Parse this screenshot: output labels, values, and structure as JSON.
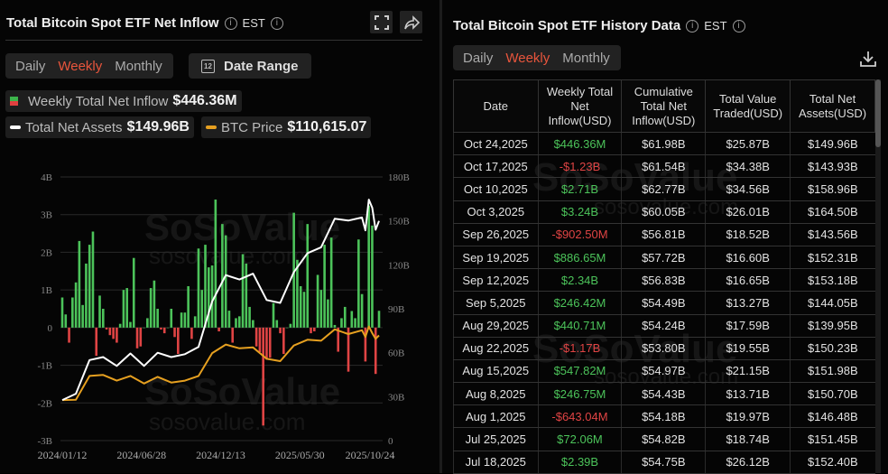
{
  "left": {
    "title": "Total Bitcoin Spot ETF Net Inflow",
    "timezone": "EST",
    "icons": {
      "info": "info-circle-icon",
      "fullscreen": "fullscreen-icon",
      "share": "share-icon",
      "calendar": "calendar-icon"
    },
    "calendar_day": "12",
    "tabs": [
      {
        "label": "Daily",
        "active": false
      },
      {
        "label": "Weekly",
        "active": true
      },
      {
        "label": "Monthly",
        "active": false
      }
    ],
    "date_range_label": "Date Range",
    "legend": {
      "inflow_label": "Weekly Total Net Inflow",
      "inflow_value": "$446.36M",
      "assets_label": "Total Net Assets",
      "assets_value": "$149.96B",
      "btc_label": "BTC Price",
      "btc_value": "$110,615.07"
    },
    "watermark": "SoSoValue",
    "watermark_url": "sosovalue.com"
  },
  "colors": {
    "accent": "#e8553c",
    "positive": "#4cc35a",
    "negative": "#e04444",
    "assets_line": "#ffffff",
    "btc_line": "#e6a020"
  },
  "chart_data": {
    "type": "bar+line",
    "left_axis": {
      "ticks": [
        "4B",
        "3B",
        "2B",
        "1B",
        "0",
        "-1B",
        "-2B",
        "-3B"
      ],
      "range": [
        -3,
        4
      ],
      "unit": "B USD"
    },
    "right_axis": {
      "ticks": [
        "180B",
        "150B",
        "120B",
        "90B",
        "60B",
        "30B",
        "0"
      ],
      "range": [
        0,
        180
      ],
      "unit": "B USD"
    },
    "x_ticks": [
      "2024/01/12",
      "2024/06/28",
      "2024/12/13",
      "2025/05/30",
      "2025/10/24"
    ],
    "x_range": [
      "2024-01-12",
      "2025-10-24"
    ],
    "grid": true,
    "weekly_net_inflow_B": [
      0.8,
      0.35,
      -0.4,
      0.8,
      1.2,
      2.3,
      0.6,
      1.7,
      2.2,
      2.55,
      -0.75,
      0.85,
      0.5,
      -0.05,
      -0.2,
      -0.3,
      -0.4,
      0.1,
      1.0,
      1.05,
      0.15,
      1.85,
      -0.55,
      -0.5,
      0.0,
      0.25,
      1.05,
      1.25,
      0.5,
      -0.05,
      -0.15,
      0.0,
      0.5,
      -0.25,
      -0.7,
      0.4,
      0.4,
      1.1,
      -0.3,
      0.3,
      2.1,
      1.0,
      2.2,
      1.6,
      1.65,
      3.4,
      -0.1,
      2.75,
      2.45,
      0.45,
      -0.4,
      0.25,
      0.3,
      1.95,
      1.7,
      0.55,
      0.2,
      -0.5,
      -0.65,
      -2.6,
      -0.85,
      -0.8,
      0.65,
      0.2,
      -0.15,
      -0.7,
      0.0,
      0.1,
      3.05,
      1.8,
      1.1,
      0.95,
      2.75,
      -0.15,
      -0.1,
      1.4,
      1.0,
      2.2,
      0.75,
      2.39,
      0.07,
      -0.64,
      0.25,
      0.55,
      -1.17,
      0.44,
      0.25,
      2.34,
      0.89,
      -0.9,
      3.24,
      2.71,
      -1.23,
      0.446
    ],
    "total_net_assets_B": [
      [
        "2024-01-12",
        27.7
      ],
      [
        "2024-02-09",
        32
      ],
      [
        "2024-03-08",
        55
      ],
      [
        "2024-04-05",
        57
      ],
      [
        "2024-05-03",
        51
      ],
      [
        "2024-05-31",
        59.5
      ],
      [
        "2024-06-28",
        51
      ],
      [
        "2024-07-26",
        60
      ],
      [
        "2024-08-23",
        57
      ],
      [
        "2024-09-20",
        59
      ],
      [
        "2024-10-18",
        64
      ],
      [
        "2024-11-15",
        95
      ],
      [
        "2024-12-13",
        113
      ],
      [
        "2025-01-10",
        110
      ],
      [
        "2025-02-07",
        114
      ],
      [
        "2025-03-07",
        96
      ],
      [
        "2025-04-04",
        94
      ],
      [
        "2025-05-02",
        115
      ],
      [
        "2025-05-30",
        128
      ],
      [
        "2025-06-27",
        132
      ],
      [
        "2025-07-25",
        151.45
      ],
      [
        "2025-08-22",
        150.23
      ],
      [
        "2025-09-19",
        152.31
      ],
      [
        "2025-09-26",
        143.56
      ],
      [
        "2025-10-03",
        164.5
      ],
      [
        "2025-10-10",
        158.96
      ],
      [
        "2025-10-17",
        143.93
      ],
      [
        "2025-10-24",
        149.96
      ]
    ],
    "btc_price_usd": [
      [
        "2024-01-12",
        42600
      ],
      [
        "2024-02-09",
        43000
      ],
      [
        "2024-03-08",
        68000
      ],
      [
        "2024-04-05",
        69000
      ],
      [
        "2024-05-03",
        63000
      ],
      [
        "2024-05-31",
        68000
      ],
      [
        "2024-06-28",
        60000
      ],
      [
        "2024-07-26",
        67000
      ],
      [
        "2024-08-23",
        61000
      ],
      [
        "2024-09-20",
        63000
      ],
      [
        "2024-10-18",
        68000
      ],
      [
        "2024-11-15",
        92000
      ],
      [
        "2024-12-13",
        101000
      ],
      [
        "2025-01-10",
        97000
      ],
      [
        "2025-02-07",
        98000
      ],
      [
        "2025-03-07",
        86000
      ],
      [
        "2025-04-04",
        83500
      ],
      [
        "2025-05-02",
        100000
      ],
      [
        "2025-05-30",
        106000
      ],
      [
        "2025-06-27",
        105000
      ],
      [
        "2025-07-25",
        117000
      ],
      [
        "2025-08-22",
        112000
      ],
      [
        "2025-09-19",
        116000
      ],
      [
        "2025-09-26",
        109000
      ],
      [
        "2025-10-03",
        120000
      ],
      [
        "2025-10-10",
        113000
      ],
      [
        "2025-10-17",
        107000
      ],
      [
        "2025-10-24",
        110615.07
      ]
    ]
  },
  "right": {
    "title": "Total Bitcoin Spot ETF History Data",
    "timezone": "EST",
    "tabs": [
      {
        "label": "Daily",
        "active": false
      },
      {
        "label": "Weekly",
        "active": true
      },
      {
        "label": "Monthly",
        "active": false
      }
    ],
    "download_icon": "download-icon",
    "columns": [
      "Date",
      "Weekly Total Net Inflow(USD)",
      "Cumulative Total Net Inflow(USD)",
      "Total Value Traded(USD)",
      "Total Net Assets(USD)"
    ],
    "rows": [
      [
        "Oct 24,2025",
        "$446.36M",
        "$61.98B",
        "$25.87B",
        "$149.96B"
      ],
      [
        "Oct 17,2025",
        "-$1.23B",
        "$61.54B",
        "$34.38B",
        "$143.93B"
      ],
      [
        "Oct 10,2025",
        "$2.71B",
        "$62.77B",
        "$34.56B",
        "$158.96B"
      ],
      [
        "Oct 3,2025",
        "$3.24B",
        "$60.05B",
        "$26.01B",
        "$164.50B"
      ],
      [
        "Sep 26,2025",
        "-$902.50M",
        "$56.81B",
        "$18.52B",
        "$143.56B"
      ],
      [
        "Sep 19,2025",
        "$886.65M",
        "$57.72B",
        "$16.60B",
        "$152.31B"
      ],
      [
        "Sep 12,2025",
        "$2.34B",
        "$56.83B",
        "$16.65B",
        "$153.18B"
      ],
      [
        "Sep 5,2025",
        "$246.42M",
        "$54.49B",
        "$13.27B",
        "$144.05B"
      ],
      [
        "Aug 29,2025",
        "$440.71M",
        "$54.24B",
        "$17.59B",
        "$139.95B"
      ],
      [
        "Aug 22,2025",
        "-$1.17B",
        "$53.80B",
        "$19.55B",
        "$150.23B"
      ],
      [
        "Aug 15,2025",
        "$547.82M",
        "$54.97B",
        "$21.15B",
        "$151.98B"
      ],
      [
        "Aug 8,2025",
        "$246.75M",
        "$54.43B",
        "$13.71B",
        "$150.70B"
      ],
      [
        "Aug 1,2025",
        "-$643.04M",
        "$54.18B",
        "$19.97B",
        "$146.48B"
      ],
      [
        "Jul 25,2025",
        "$72.06M",
        "$54.82B",
        "$18.74B",
        "$151.45B"
      ],
      [
        "Jul 18,2025",
        "$2.39B",
        "$54.75B",
        "$26.12B",
        "$152.40B"
      ]
    ]
  }
}
